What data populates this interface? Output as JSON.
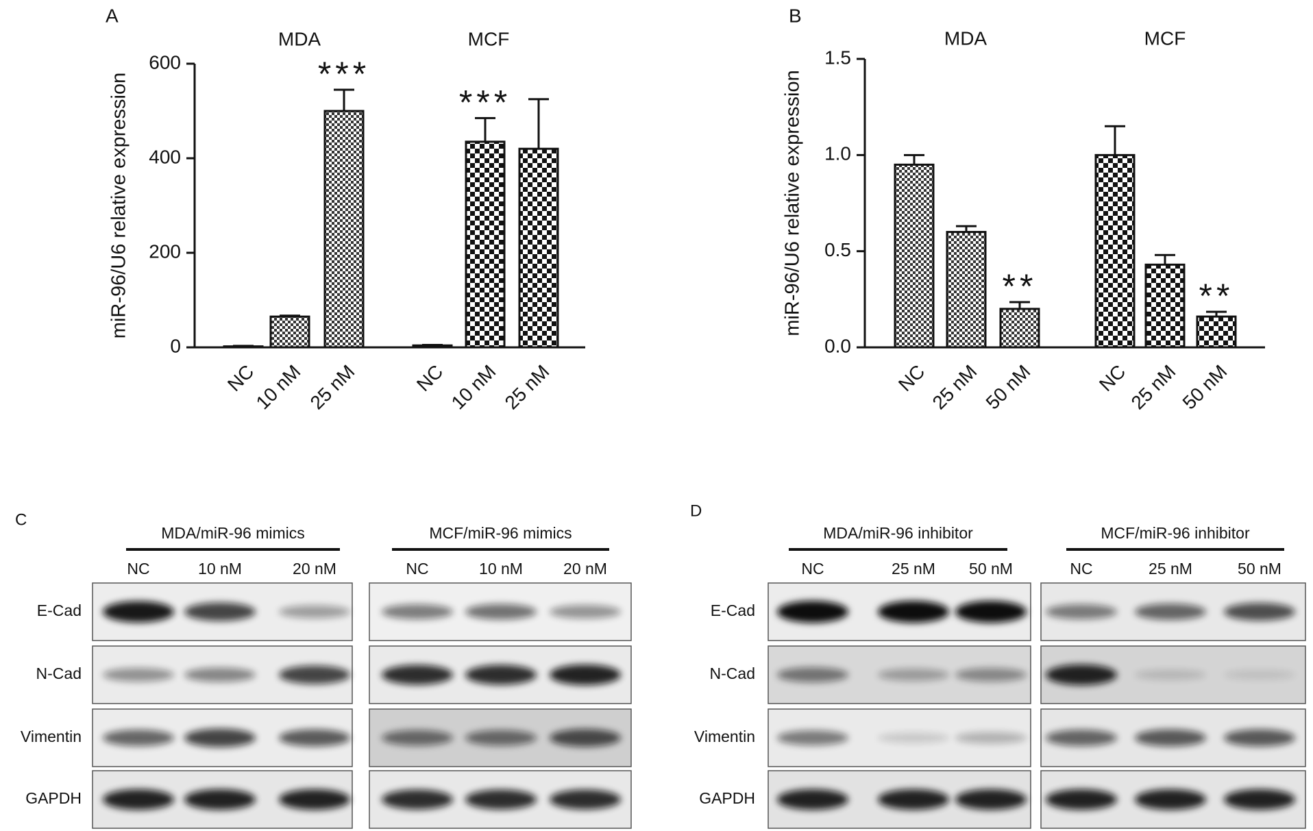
{
  "chart_data": [
    {
      "type": "bar",
      "panel": "A",
      "ylabel": "miR-96/U6 relative expression",
      "categories": [
        "NC",
        "10 nM",
        "25 nM"
      ],
      "series": [
        {
          "name": "MDA",
          "values": [
            2,
            65,
            500
          ],
          "errors": [
            1,
            2,
            45
          ],
          "significance": [
            null,
            null,
            "***"
          ]
        },
        {
          "name": "MCF",
          "values": [
            4,
            435,
            420
          ],
          "errors": [
            1,
            50,
            105
          ],
          "significance": [
            null,
            "***",
            null
          ]
        }
      ],
      "ylim": [
        0,
        600
      ],
      "yticks": [
        0,
        200,
        400,
        600
      ]
    },
    {
      "type": "bar",
      "panel": "B",
      "ylabel": "miR-96/U6 relative expression",
      "categories": [
        "NC",
        "25 nM",
        "50 nM"
      ],
      "series": [
        {
          "name": "MDA",
          "values": [
            0.95,
            0.6,
            0.2
          ],
          "errors": [
            0.05,
            0.03,
            0.035
          ],
          "significance": [
            null,
            null,
            "**"
          ]
        },
        {
          "name": "MCF",
          "values": [
            1.0,
            0.43,
            0.16
          ],
          "errors": [
            0.15,
            0.05,
            0.025
          ],
          "significance": [
            null,
            null,
            "**"
          ]
        }
      ],
      "ylim": [
        0,
        1.5
      ],
      "yticks": [
        {
          "value": 0,
          "label": "0.0"
        },
        0.5,
        {
          "value": 1,
          "label": "1.0"
        },
        1.5
      ]
    }
  ],
  "blots": [
    {
      "panel": "C",
      "rows": [
        "E-Cad",
        "N-Cad",
        "Vimentin",
        "GAPDH"
      ],
      "groups": [
        {
          "title": "MDA/miR-96 mimics",
          "lanes": [
            "NC",
            "10 nM",
            "20 nM"
          ]
        },
        {
          "title": "MCF/miR-96 mimics",
          "lanes": [
            "NC",
            "10 nM",
            "20 nM"
          ]
        }
      ]
    },
    {
      "panel": "D",
      "rows": [
        "E-Cad",
        "N-Cad",
        "Vimentin",
        "GAPDH"
      ],
      "groups": [
        {
          "title": "MDA/miR-96 inhibitor",
          "lanes": [
            "NC",
            "25 nM",
            "50 nM"
          ]
        },
        {
          "title": "MCF/miR-96 inhibitor",
          "lanes": [
            "NC",
            "25 nM",
            "50 nM"
          ]
        }
      ]
    }
  ]
}
